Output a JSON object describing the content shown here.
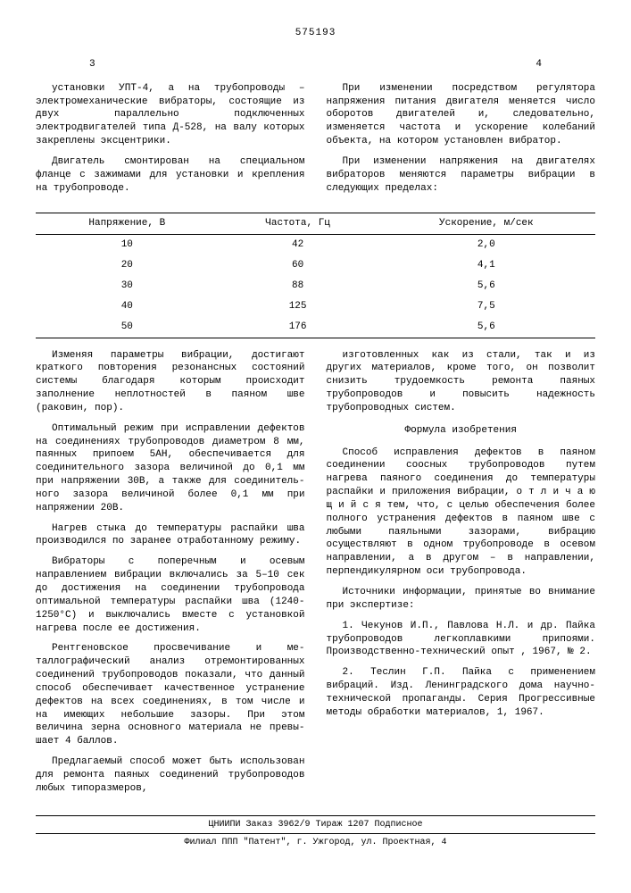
{
  "header": {
    "doc_number": "575193",
    "page_left": "3",
    "page_right": "4"
  },
  "top_block": {
    "left_p1": "установки УПТ-4, а на трубопроводы – электромеханические вибраторы, со­стоящие из двух параллельно подклю­ченных электродвигателей типа Д-528, на валу которых закреплены эксцентрики.",
    "left_p2": "Двигатель смонтирован на специаль­ном фланце с зажимами для установки и крепления на трубопроводе.",
    "right_p1": "При изменении посредством регуля­тора напряжения питания двигателя ме­няется число оборотов двигателей и, следовательно, изменяется частота и ускорение колебаний объекта, на ко­тором установлен вибратор.",
    "right_p2": "При изменении напряжения на дви­гателях вибраторов меняются параметры вибрации в следующих пределах:"
  },
  "table": {
    "headers": [
      "Напряжение, В",
      "Частота, Гц",
      "Ускорение, м/сек"
    ],
    "rows": [
      [
        "10",
        "42",
        "2,0"
      ],
      [
        "20",
        "60",
        "4,1"
      ],
      [
        "30",
        "88",
        "5,6"
      ],
      [
        "40",
        "125",
        "7,5"
      ],
      [
        "50",
        "176",
        "5,6"
      ]
    ]
  },
  "bottom_block": {
    "left_p1": "Изменяя параметры вибрации, дости­гают краткого повторения резонансных состояний системы благодаря которым происходит заполнение неплотностей в паяном шве (раковин, пор).",
    "left_p2": "Оптимальный режим при исправлении дефектов на соединениях трубопроводов диаметром 8 мм, паянных припоем 5АН, обеспечивается для соединительного зазора величиной до 0,1 мм при на­пряжении 30В, а также для соединитель­ного зазора величиной более 0,1 мм при напряжении 20В.",
    "left_p3": "Нагрев стыка до температуры рас­пайки шва производился по заранее от­работанному режиму.",
    "left_p4": "Вибраторы с поперечным и осевым направлением вибрации включались за 5–10 сек до достижения на соединении трубопровода оптимальной температуры распайки шва (1240-1250°С) и выключа­лись вместе с установкой нагрева пос­ле ее достижения.",
    "left_p5": "Рентгеновское просвечивание и ме­таллографический анализ отремонтирован­ных соединений трубопроводов показали, что данный способ обеспечивает качест­венное устранение дефектов на всех соединениях, в том числе и на имеющих небольшие зазоры. При этом величина зерна основного материала не превы­шает 4 баллов.",
    "left_p6": "Предлагаемый способ может быть ис­пользован для ремонта паяных соедине­ний трубопроводов любых типоразмеров,",
    "right_p1": "изготовленных как из стали, так и из других материалов, кроме того, он позволит снизить трудоемкость ремонта паяных трубопроводов и повысить надеж­ность трубопроводных систем.",
    "formula_title": "Формула изобретения",
    "right_p2": "Способ исправления дефектов в пая­ном соединении соосных трубопроводов путем нагрева паяного соединения до температуры распайки и приложения вибрации, о т л и ч а ю щ и й с я тем, что, с целью обеспечения более полного устранения дефектов в паяном шве с любыми паяльными зазорами, виб­рацию осуществляют в одном трубопрово­де в осевом направлении, а в другом – в направлении, перпендикулярном оси трубопровода.",
    "sources_title": "Источники информации, принятые во внимание при экспертизе:",
    "right_p3": "1. Чекунов И.П., Павлова Н.Л. и др. Пайка трубопроводов легкоплав­кими припоями. Производственно-тех­нический опыт , 1967, № 2.",
    "right_p4": "2. Теслин Г.П. Пайка с применением вибраций. Изд. Ленинградского дома научно-технической пропаганды. Серия Прогрессивные методы обработки мате­риалов, 1, 1967."
  },
  "footer": {
    "line": "ЦНИИПИ  Заказ 3962/9   Тираж 1207 Подписное",
    "affiliate": "Филиал ППП \"Патент\", г. Ужгород, ул. Проектная, 4"
  }
}
